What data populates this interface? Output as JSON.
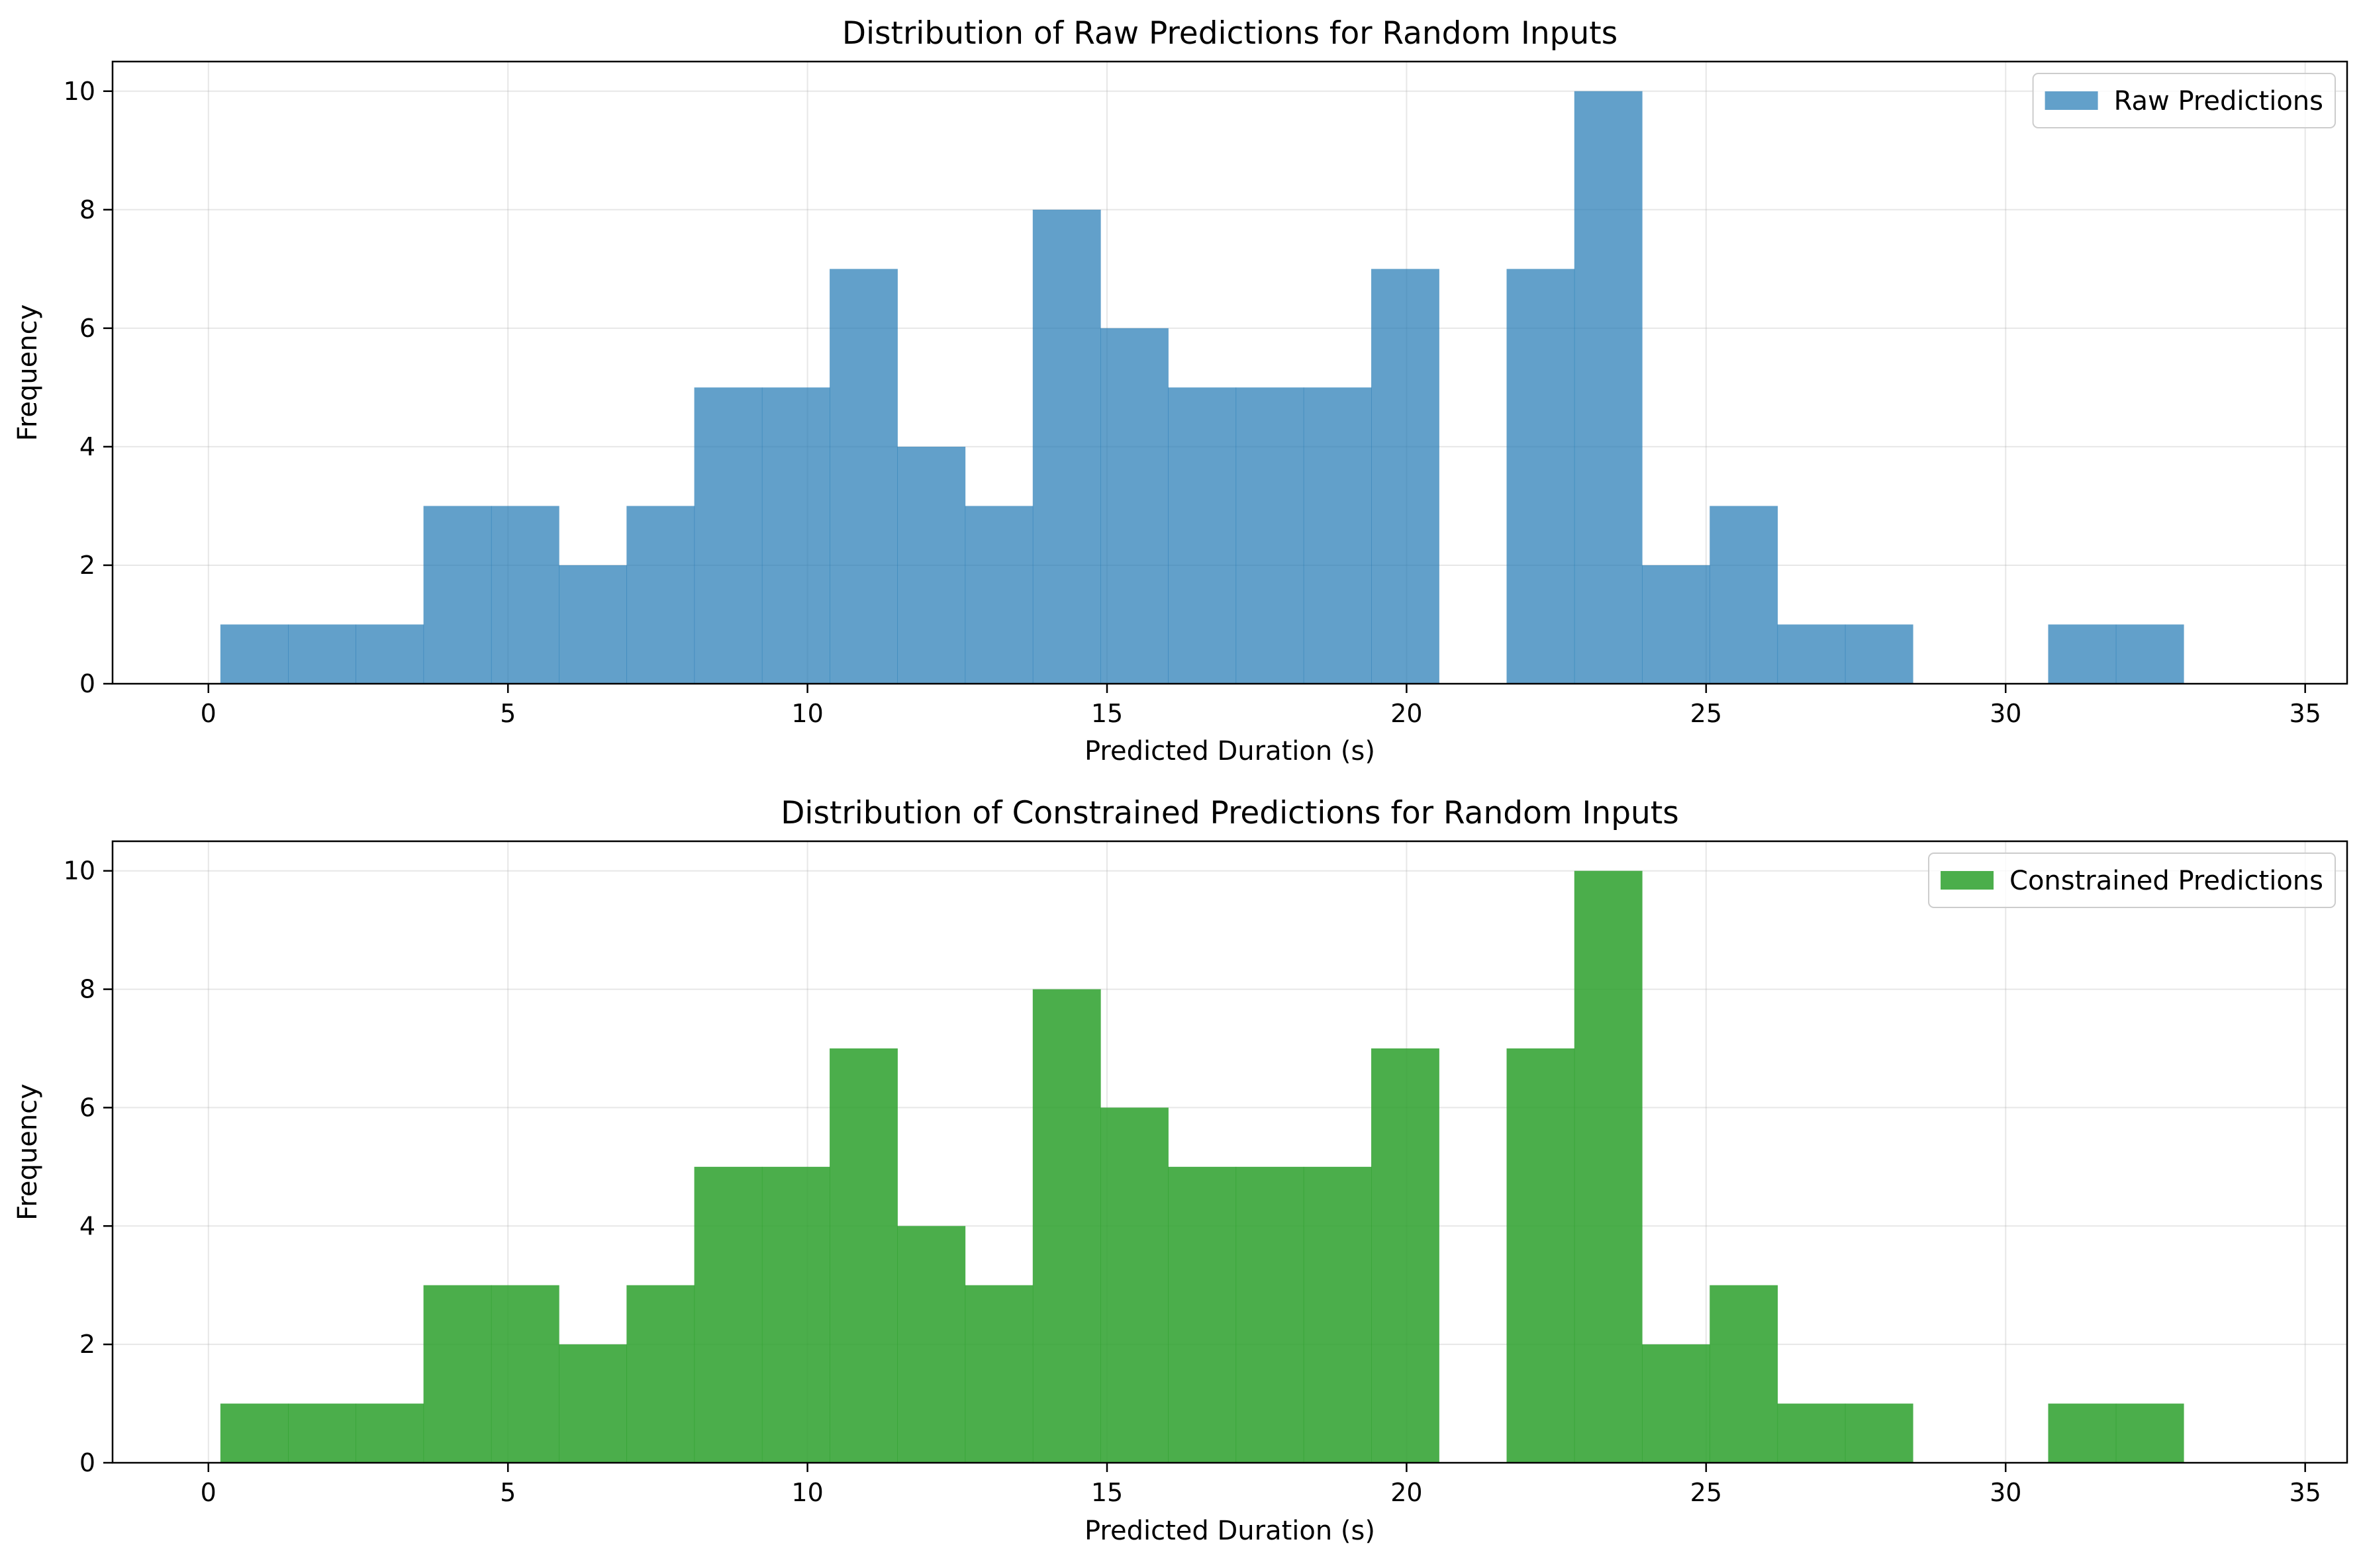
{
  "chart_data": [
    {
      "type": "histogram",
      "title": "Distribution of Raw Predictions for Random Inputs",
      "xlabel": "Predicted Duration (s)",
      "ylabel": "Frequency",
      "xlim": [
        -1.6,
        35.7
      ],
      "ylim": [
        0,
        10.5
      ],
      "xticks": [
        0,
        5,
        10,
        15,
        20,
        25,
        30,
        35
      ],
      "yticks": [
        0,
        2,
        4,
        6,
        8,
        10
      ],
      "grid": true,
      "legend_position": "top-right",
      "color": "#1f77b4",
      "alpha": 0.7,
      "series": [
        {
          "name": "Raw Predictions"
        }
      ],
      "bin_start": 0.2,
      "bin_width": 1.13,
      "counts": [
        1,
        1,
        1,
        3,
        3,
        2,
        3,
        5,
        5,
        7,
        4,
        3,
        8,
        6,
        5,
        5,
        5,
        7,
        0,
        7,
        10,
        2,
        3,
        1,
        1,
        0,
        0,
        1,
        1,
        0
      ]
    },
    {
      "type": "histogram",
      "title": "Distribution of Constrained Predictions for Random Inputs",
      "xlabel": "Predicted Duration (s)",
      "ylabel": "Frequency",
      "xlim": [
        -1.6,
        35.7
      ],
      "ylim": [
        0,
        10.5
      ],
      "xticks": [
        0,
        5,
        10,
        15,
        20,
        25,
        30,
        35
      ],
      "yticks": [
        0,
        2,
        4,
        6,
        8,
        10
      ],
      "grid": true,
      "legend_position": "top-right",
      "color": "#2ca02c",
      "alpha": 0.85,
      "series": [
        {
          "name": "Constrained Predictions"
        }
      ],
      "bin_start": 0.2,
      "bin_width": 1.13,
      "counts": [
        1,
        1,
        1,
        3,
        3,
        2,
        3,
        5,
        5,
        7,
        4,
        3,
        8,
        6,
        5,
        5,
        5,
        7,
        0,
        7,
        10,
        2,
        3,
        1,
        1,
        0,
        0,
        1,
        1,
        0
      ]
    }
  ]
}
